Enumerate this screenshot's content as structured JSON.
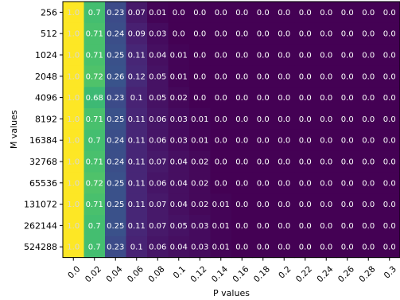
{
  "chart_data": {
    "type": "heatmap",
    "title": "",
    "xlabel": "P values",
    "ylabel": "M values",
    "colormap": "viridis",
    "value_range": [
      0.0,
      1.0
    ],
    "x_tick_labels": [
      "0.0",
      "0.02",
      "0.04",
      "0.06",
      "0.08",
      "0.1",
      "0.12",
      "0.14",
      "0.16",
      "0.18",
      "0.2",
      "0.22",
      "0.24",
      "0.26",
      "0.28",
      "0.3"
    ],
    "y_tick_labels": [
      "256",
      "512",
      "1024",
      "2048",
      "4096",
      "8192",
      "16384",
      "32768",
      "65536",
      "131072",
      "262144",
      "524288"
    ],
    "cell_labels": [
      [
        "1.0",
        "0.7",
        "0.23",
        "0.07",
        "0.01",
        "0.0",
        "0.0",
        "0.0",
        "0.0",
        "0.0",
        "0.0",
        "0.0",
        "0.0",
        "0.0",
        "0.0",
        "0.0"
      ],
      [
        "1.0",
        "0.71",
        "0.24",
        "0.09",
        "0.03",
        "0.0",
        "0.0",
        "0.0",
        "0.0",
        "0.0",
        "0.0",
        "0.0",
        "0.0",
        "0.0",
        "0.0",
        "0.0"
      ],
      [
        "1.0",
        "0.71",
        "0.25",
        "0.11",
        "0.04",
        "0.01",
        "0.0",
        "0.0",
        "0.0",
        "0.0",
        "0.0",
        "0.0",
        "0.0",
        "0.0",
        "0.0",
        "0.0"
      ],
      [
        "1.0",
        "0.72",
        "0.26",
        "0.12",
        "0.05",
        "0.01",
        "0.0",
        "0.0",
        "0.0",
        "0.0",
        "0.0",
        "0.0",
        "0.0",
        "0.0",
        "0.0",
        "0.0"
      ],
      [
        "1.0",
        "0.68",
        "0.23",
        "0.1",
        "0.05",
        "0.02",
        "0.0",
        "0.0",
        "0.0",
        "0.0",
        "0.0",
        "0.0",
        "0.0",
        "0.0",
        "0.0",
        "0.0"
      ],
      [
        "1.0",
        "0.71",
        "0.25",
        "0.11",
        "0.06",
        "0.03",
        "0.01",
        "0.0",
        "0.0",
        "0.0",
        "0.0",
        "0.0",
        "0.0",
        "0.0",
        "0.0",
        "0.0"
      ],
      [
        "1.0",
        "0.7",
        "0.24",
        "0.11",
        "0.06",
        "0.03",
        "0.01",
        "0.0",
        "0.0",
        "0.0",
        "0.0",
        "0.0",
        "0.0",
        "0.0",
        "0.0",
        "0.0"
      ],
      [
        "1.0",
        "0.71",
        "0.24",
        "0.11",
        "0.07",
        "0.04",
        "0.02",
        "0.0",
        "0.0",
        "0.0",
        "0.0",
        "0.0",
        "0.0",
        "0.0",
        "0.0",
        "0.0"
      ],
      [
        "1.0",
        "0.72",
        "0.25",
        "0.11",
        "0.06",
        "0.04",
        "0.02",
        "0.0",
        "0.0",
        "0.0",
        "0.0",
        "0.0",
        "0.0",
        "0.0",
        "0.0",
        "0.0"
      ],
      [
        "1.0",
        "0.71",
        "0.25",
        "0.11",
        "0.07",
        "0.04",
        "0.02",
        "0.01",
        "0.0",
        "0.0",
        "0.0",
        "0.0",
        "0.0",
        "0.0",
        "0.0",
        "0.0"
      ],
      [
        "1.0",
        "0.7",
        "0.25",
        "0.11",
        "0.07",
        "0.05",
        "0.03",
        "0.01",
        "0.0",
        "0.0",
        "0.0",
        "0.0",
        "0.0",
        "0.0",
        "0.0",
        "0.0"
      ],
      [
        "1.0",
        "0.7",
        "0.23",
        "0.1",
        "0.06",
        "0.04",
        "0.03",
        "0.01",
        "0.0",
        "0.0",
        "0.0",
        "0.0",
        "0.0",
        "0.0",
        "0.0",
        "0.0"
      ]
    ]
  }
}
